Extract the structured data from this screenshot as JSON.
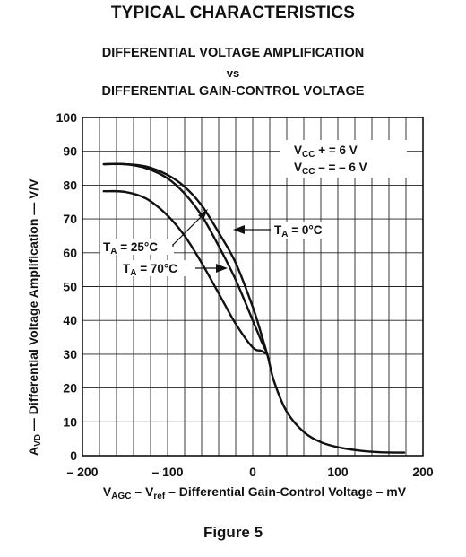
{
  "header": {
    "title": "TYPICAL CHARACTERISTICS",
    "subtitle_line1": "DIFFERENTIAL VOLTAGE AMPLIFICATION",
    "subtitle_line2": "vs",
    "subtitle_line3": "DIFFERENTIAL GAIN-CONTROL VOLTAGE"
  },
  "figure_caption": "Figure 5",
  "chart_data": {
    "type": "line",
    "title": "DIFFERENTIAL VOLTAGE AMPLIFICATION vs DIFFERENTIAL GAIN-CONTROL VOLTAGE",
    "ylabel": "AVD — Differential Voltage Amplification — V/V",
    "xlabel": "VAGC – Vref – Differential Gain-Control Voltage – mV",
    "xlim": [
      -200,
      200
    ],
    "ylim": [
      0,
      100
    ],
    "x_ticks": [
      -200,
      -100,
      0,
      100,
      200
    ],
    "x_tick_labels": [
      "– 200",
      "– 100",
      "0",
      "100",
      "200"
    ],
    "y_ticks": [
      0,
      10,
      20,
      30,
      40,
      50,
      60,
      70,
      80,
      90,
      100
    ],
    "y_tick_labels": [
      "0",
      "10",
      "20",
      "30",
      "40",
      "50",
      "60",
      "70",
      "80",
      "90",
      "100"
    ],
    "grid": true,
    "conditions": [
      "VCC + = 6 V",
      "VCC – = – 6 V"
    ],
    "series": [
      {
        "name": "TA = 0°C",
        "x": [
          -175,
          -150,
          -125,
          -100,
          -80,
          -60,
          -40,
          -20,
          0,
          10,
          17
        ],
        "y": [
          86.2,
          86.2,
          85.5,
          83,
          79.5,
          74,
          66,
          57,
          44,
          36,
          30
        ]
      },
      {
        "name": "TA = 25°C",
        "x": [
          -175,
          -150,
          -125,
          -100,
          -80,
          -60,
          -40,
          -20,
          0,
          10,
          17,
          25,
          40,
          60,
          80,
          100,
          125,
          150,
          178
        ],
        "y": [
          86.2,
          86.2,
          85,
          82,
          77.5,
          71,
          62,
          52,
          40,
          34,
          30,
          22,
          13,
          7,
          4,
          2.5,
          1.5,
          1,
          0.9
        ]
      },
      {
        "name": "TA = 70°C",
        "x": [
          -175,
          -150,
          -125,
          -100,
          -80,
          -60,
          -40,
          -20,
          0,
          10,
          17
        ],
        "y": [
          78.2,
          78,
          76,
          71,
          65,
          57,
          48,
          39,
          32,
          31,
          30
        ]
      }
    ],
    "annotations": [
      "TA = 25°C",
      "TA = 0°C",
      "TA = 70°C"
    ]
  }
}
